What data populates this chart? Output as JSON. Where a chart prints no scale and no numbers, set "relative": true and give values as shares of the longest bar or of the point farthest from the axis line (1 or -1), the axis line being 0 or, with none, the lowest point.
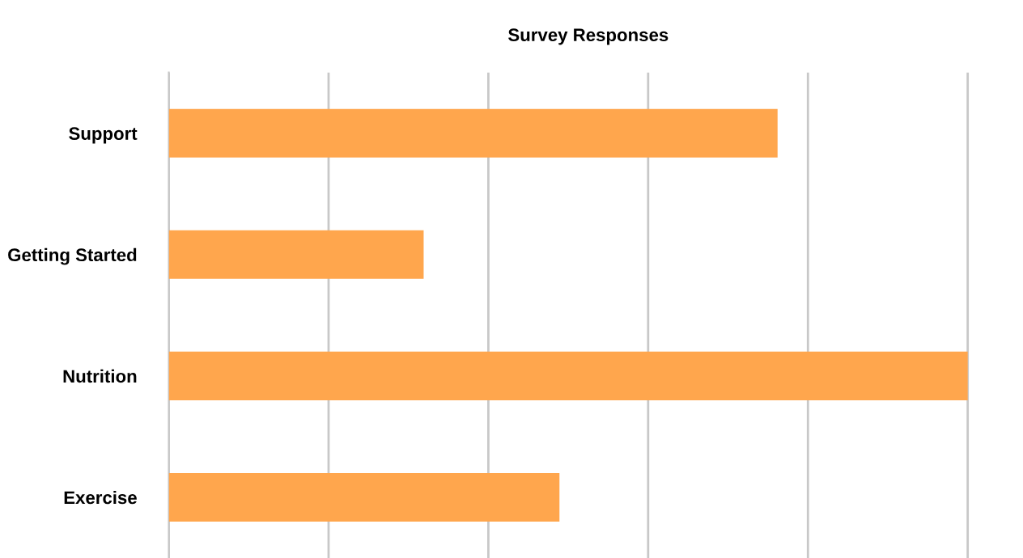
{
  "chart_data": {
    "type": "bar",
    "title": "Survey Responses",
    "orientation": "horizontal",
    "relative": true,
    "categories": [
      "Support",
      "Getting Started",
      "Nutrition",
      "Exercise"
    ],
    "values": [
      0.762,
      0.319,
      1,
      0.489
    ],
    "color": "#ffa64d",
    "grid": "x",
    "legend": false
  }
}
